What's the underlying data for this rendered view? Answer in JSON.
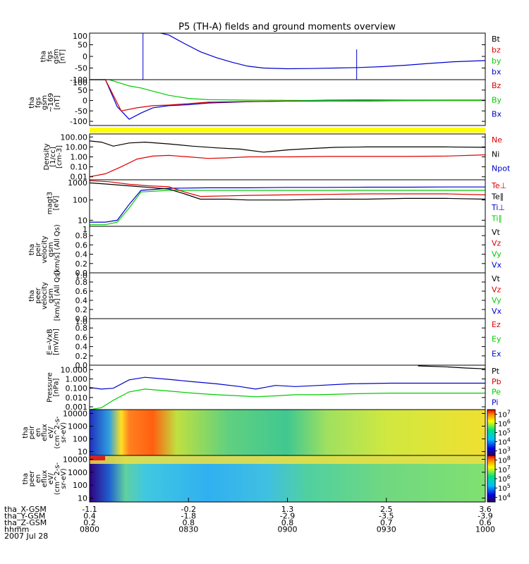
{
  "title": "P5 (TH-A) fields and ground moments overview",
  "colors": {
    "black": "#000000",
    "red": "#dd0000",
    "green": "#00cc00",
    "blue": "#0000cc",
    "yellow": "#ffff00"
  },
  "chart_data": [
    {
      "id": "fgs",
      "type": "line",
      "ylabel": [
        "tha",
        "fgs",
        "gsm",
        "[nT]"
      ],
      "ylim": [
        -100,
        100
      ],
      "yticks": [
        "100",
        "50",
        "0",
        "-50",
        "-100"
      ],
      "legend": [
        {
          "label": "Bt",
          "color": "#000000"
        },
        {
          "label": "bz",
          "color": "#dd0000"
        },
        {
          "label": "by",
          "color": "#00cc00"
        },
        {
          "label": "bx",
          "color": "#0000cc"
        }
      ],
      "series": [
        {
          "color": "#0000cc",
          "x": [
            0.18,
            0.2,
            0.24,
            0.28,
            0.32,
            0.36,
            0.4,
            0.44,
            0.5,
            0.56,
            0.62,
            0.68,
            0.74,
            0.8,
            0.86,
            0.92,
            1.0
          ],
          "y": [
            100,
            92,
            55,
            20,
            -5,
            -25,
            -42,
            -50,
            -53,
            -52,
            -50,
            -48,
            -44,
            -38,
            -30,
            -23,
            -18
          ]
        }
      ],
      "spikes": [
        {
          "x": 0.135,
          "color": "#0000cc",
          "y0": -100,
          "y1": 100
        },
        {
          "x": 0.675,
          "color": "#0000cc",
          "y0": -100,
          "y1": 30
        }
      ]
    },
    {
      "id": "fgs169",
      "type": "line",
      "ylabel": [
        "tha",
        "fgs",
        "gsm",
        "~169",
        "[nT]"
      ],
      "ylim": [
        -120,
        100
      ],
      "yticks": [
        "100",
        "50",
        "0",
        "-50",
        "-100"
      ],
      "legend": [
        {
          "label": "Bz",
          "color": "#dd0000"
        },
        {
          "label": "By",
          "color": "#00cc00"
        },
        {
          "label": "Bx",
          "color": "#0000cc"
        }
      ],
      "series": [
        {
          "color": "#0000cc",
          "x": [
            0.0,
            0.04,
            0.07,
            0.1,
            0.13,
            0.16,
            0.2,
            0.25,
            0.3,
            0.4,
            0.5,
            0.6,
            0.7,
            0.8,
            0.9,
            1.0
          ],
          "y": [
            100,
            100,
            -30,
            -90,
            -60,
            -35,
            -25,
            -20,
            -12,
            -6,
            -3,
            -2,
            -2,
            -1,
            0,
            0
          ]
        },
        {
          "color": "#dd0000",
          "x": [
            0.0,
            0.04,
            0.08,
            0.12,
            0.16,
            0.2,
            0.25,
            0.3,
            0.4,
            0.5,
            0.6,
            0.7,
            0.8,
            0.9,
            1.0
          ],
          "y": [
            100,
            100,
            -50,
            -35,
            -25,
            -22,
            -15,
            -8,
            -5,
            -3,
            2,
            3,
            2,
            2,
            2
          ]
        },
        {
          "color": "#00cc00",
          "x": [
            0.0,
            0.05,
            0.1,
            0.13,
            0.16,
            0.2,
            0.25,
            0.3,
            0.4,
            0.5,
            0.6,
            0.7,
            0.8,
            0.9,
            1.0
          ],
          "y": [
            100,
            100,
            70,
            60,
            45,
            25,
            10,
            4,
            2,
            1,
            0,
            0,
            0,
            0,
            0
          ]
        }
      ]
    },
    {
      "id": "density",
      "type": "line",
      "log": true,
      "ylabel": [
        "Density",
        "[1/cc]",
        "[cm-3]"
      ],
      "ylim": [
        0.005,
        200
      ],
      "yticks": [
        "100.00",
        "10.00",
        "1.00",
        "0.10",
        "0.01"
      ],
      "legend": [
        {
          "label": "Ne",
          "color": "#dd0000"
        },
        {
          "label": "Ni",
          "color": "#000000"
        },
        {
          "label": "Npot",
          "color": "#0000cc"
        }
      ],
      "series": [
        {
          "color": "#000000",
          "x": [
            0.0,
            0.03,
            0.06,
            0.1,
            0.14,
            0.2,
            0.26,
            0.32,
            0.38,
            0.44,
            0.5,
            0.56,
            0.62,
            0.7,
            0.8,
            0.9,
            1.0
          ],
          "y": [
            40,
            30,
            12,
            25,
            30,
            20,
            12,
            8,
            6,
            3,
            5,
            7,
            9,
            10,
            10,
            10,
            9
          ]
        },
        {
          "color": "#dd0000",
          "x": [
            0.0,
            0.04,
            0.08,
            0.12,
            0.16,
            0.2,
            0.25,
            0.3,
            0.35,
            0.4,
            0.5,
            0.6,
            0.7,
            0.8,
            0.9,
            1.0
          ],
          "y": [
            0.01,
            0.02,
            0.1,
            0.6,
            1.2,
            1.4,
            1.0,
            0.7,
            0.8,
            1.0,
            1.0,
            1.1,
            1.1,
            1.1,
            1.2,
            1.6
          ]
        }
      ]
    },
    {
      "id": "temp",
      "type": "line",
      "log": true,
      "ylabel": [
        "magt3",
        "[eV]"
      ],
      "ylim": [
        5,
        1000
      ],
      "yticks": [
        "1000",
        "100",
        "10"
      ],
      "legend": [
        {
          "label": "Te⊥",
          "color": "#dd0000"
        },
        {
          "label": "Te∥",
          "color": "#000000"
        },
        {
          "label": "Ti⊥",
          "color": "#0000cc"
        },
        {
          "label": "Ti∥",
          "color": "#00cc00"
        }
      ],
      "series": [
        {
          "color": "#0000cc",
          "x": [
            0.0,
            0.04,
            0.07,
            0.1,
            0.13,
            0.2,
            0.3,
            0.4,
            0.5,
            0.6,
            0.7,
            0.8,
            0.9,
            1.0
          ],
          "y": [
            8,
            8,
            10,
            60,
            300,
            380,
            400,
            400,
            420,
            420,
            430,
            430,
            440,
            440
          ]
        },
        {
          "color": "#00cc00",
          "x": [
            0.0,
            0.04,
            0.07,
            0.1,
            0.13,
            0.2,
            0.3,
            0.4,
            0.5,
            0.6,
            0.7,
            0.8,
            0.9,
            1.0
          ],
          "y": [
            6,
            6,
            8,
            40,
            250,
            300,
            300,
            300,
            300,
            300,
            300,
            300,
            300,
            300
          ]
        },
        {
          "color": "#dd0000",
          "x": [
            0.0,
            0.05,
            0.1,
            0.15,
            0.2,
            0.24,
            0.28,
            0.35,
            0.4,
            0.5,
            0.6,
            0.7,
            0.8,
            0.9,
            1.0
          ],
          "y": [
            900,
            800,
            600,
            500,
            450,
            250,
            150,
            160,
            170,
            180,
            190,
            200,
            200,
            200,
            180
          ]
        },
        {
          "color": "#000000",
          "x": [
            0.0,
            0.05,
            0.1,
            0.15,
            0.2,
            0.24,
            0.28,
            0.35,
            0.4,
            0.5,
            0.6,
            0.7,
            0.8,
            0.9,
            1.0
          ],
          "y": [
            700,
            600,
            500,
            420,
            350,
            200,
            110,
            110,
            100,
            100,
            110,
            110,
            120,
            120,
            110
          ]
        }
      ]
    },
    {
      "id": "peir",
      "type": "line",
      "ylabel": [
        "tha",
        "peir",
        "velocity",
        "gsm",
        "[km/s] (All Qs)"
      ],
      "ylim": [
        0,
        1
      ],
      "yticks": [
        "1",
        "0.8",
        "0.6",
        "0.4",
        "0.2",
        "0.0"
      ],
      "legend": [
        {
          "label": "Vt",
          "color": "#000000"
        },
        {
          "label": "Vz",
          "color": "#dd0000"
        },
        {
          "label": "Vy",
          "color": "#00cc00"
        },
        {
          "label": "Vx",
          "color": "#0000cc"
        }
      ],
      "series": []
    },
    {
      "id": "peer",
      "type": "line",
      "ylabel": [
        "tha",
        "peer",
        "velocity",
        "gsm",
        "[km/s] (All Qs)"
      ],
      "ylim": [
        0,
        1
      ],
      "yticks": [
        "1.0",
        "0.8",
        "0.6",
        "0.4",
        "0.2",
        "0.0"
      ],
      "legend": [
        {
          "label": "Vt",
          "color": "#000000"
        },
        {
          "label": "Vz",
          "color": "#dd0000"
        },
        {
          "label": "Vy",
          "color": "#00cc00"
        },
        {
          "label": "Vx",
          "color": "#0000cc"
        }
      ],
      "series": []
    },
    {
      "id": "efield",
      "type": "line",
      "ylabel": [
        "E=-VxB",
        "[mV/m]"
      ],
      "ylim": [
        0,
        1
      ],
      "yticks": [
        "1.0",
        "0.8",
        "0.6",
        "0.4",
        "0.2",
        "0.0"
      ],
      "legend": [
        {
          "label": "Ez",
          "color": "#dd0000"
        },
        {
          "label": "Ey",
          "color": "#00cc00"
        },
        {
          "label": "Ex",
          "color": "#0000cc"
        }
      ],
      "series": []
    },
    {
      "id": "pressure",
      "type": "line",
      "log": true,
      "ylabel": [
        "Pressure",
        "[nPa]"
      ],
      "ylim": [
        0.0005,
        30
      ],
      "yticks": [
        "10.000",
        "1.000",
        "0.100",
        "0.010",
        "0.001"
      ],
      "legend": [
        {
          "label": "Pt",
          "color": "#000000"
        },
        {
          "label": "Pb",
          "color": "#dd0000"
        },
        {
          "label": "Pe",
          "color": "#00cc00"
        },
        {
          "label": "Pi",
          "color": "#0000cc"
        }
      ],
      "series": [
        {
          "color": "#000000",
          "x": [
            0.83,
            0.9,
            0.95,
            1.0
          ],
          "y": [
            25,
            20,
            15,
            12
          ]
        },
        {
          "color": "#0000cc",
          "x": [
            0.0,
            0.03,
            0.06,
            0.1,
            0.14,
            0.2,
            0.26,
            0.32,
            0.38,
            0.42,
            0.47,
            0.52,
            0.58,
            0.66,
            0.76,
            0.86,
            1.0
          ],
          "y": [
            0.12,
            0.08,
            0.1,
            0.8,
            1.5,
            0.9,
            0.5,
            0.3,
            0.15,
            0.08,
            0.2,
            0.15,
            0.2,
            0.3,
            0.35,
            0.35,
            0.35
          ]
        },
        {
          "color": "#00cc00",
          "x": [
            0.0,
            0.03,
            0.06,
            0.1,
            0.14,
            0.2,
            0.26,
            0.32,
            0.38,
            0.42,
            0.47,
            0.52,
            0.58,
            0.66,
            0.76,
            0.86,
            1.0
          ],
          "y": [
            0.0005,
            0.0008,
            0.005,
            0.04,
            0.08,
            0.05,
            0.03,
            0.02,
            0.015,
            0.012,
            0.015,
            0.02,
            0.02,
            0.025,
            0.03,
            0.03,
            0.03
          ]
        }
      ]
    },
    {
      "id": "peir_en",
      "type": "heatmap",
      "log": true,
      "ylabel": [
        "tha",
        "peir",
        "en",
        "eflux",
        "eV/",
        "(cm^2-s-",
        "sr-eV)"
      ],
      "ylim": [
        5,
        20000
      ],
      "yticks": [
        "10000",
        "1000",
        "100",
        "10"
      ],
      "colorbar": {
        "labels": [
          "10^7",
          "10^6",
          "10^5",
          "10^4",
          "10^3"
        ],
        "range_exp": [
          2.5,
          7.5
        ]
      }
    },
    {
      "id": "peer_en",
      "type": "heatmap",
      "log": true,
      "ylabel": [
        "tha",
        "peer",
        "en",
        "eflux",
        "eV/",
        "(cm^2-s-",
        "sr-eV)"
      ],
      "ylim": [
        5,
        20000
      ],
      "yticks": [
        "10000",
        "1000",
        "100",
        "10"
      ],
      "colorbar": {
        "labels": [
          "10^8",
          "10^7",
          "10^6",
          "10^5",
          "10^4"
        ],
        "range_exp": [
          3.5,
          8.5
        ]
      }
    }
  ],
  "orbit": {
    "row_labels": [
      "tha_X-GSM",
      "tha_Y-GSM",
      "tha_Z-GSM",
      "hhmm",
      "2007 Jul 28"
    ],
    "columns": [
      {
        "x": "-1.1",
        "y": "0.4",
        "z": "0.2",
        "t": "0800"
      },
      {
        "x": "-0.2",
        "y": "-1.8",
        "z": "0.8",
        "t": "0830"
      },
      {
        "x": "1.3",
        "y": "-2.9",
        "z": "0.8",
        "t": "0900"
      },
      {
        "x": "2.5",
        "y": "-3.5",
        "z": "0.7",
        "t": "0930"
      },
      {
        "x": "3.6",
        "y": "-3.9",
        "z": "0.6",
        "t": "1000"
      }
    ]
  }
}
